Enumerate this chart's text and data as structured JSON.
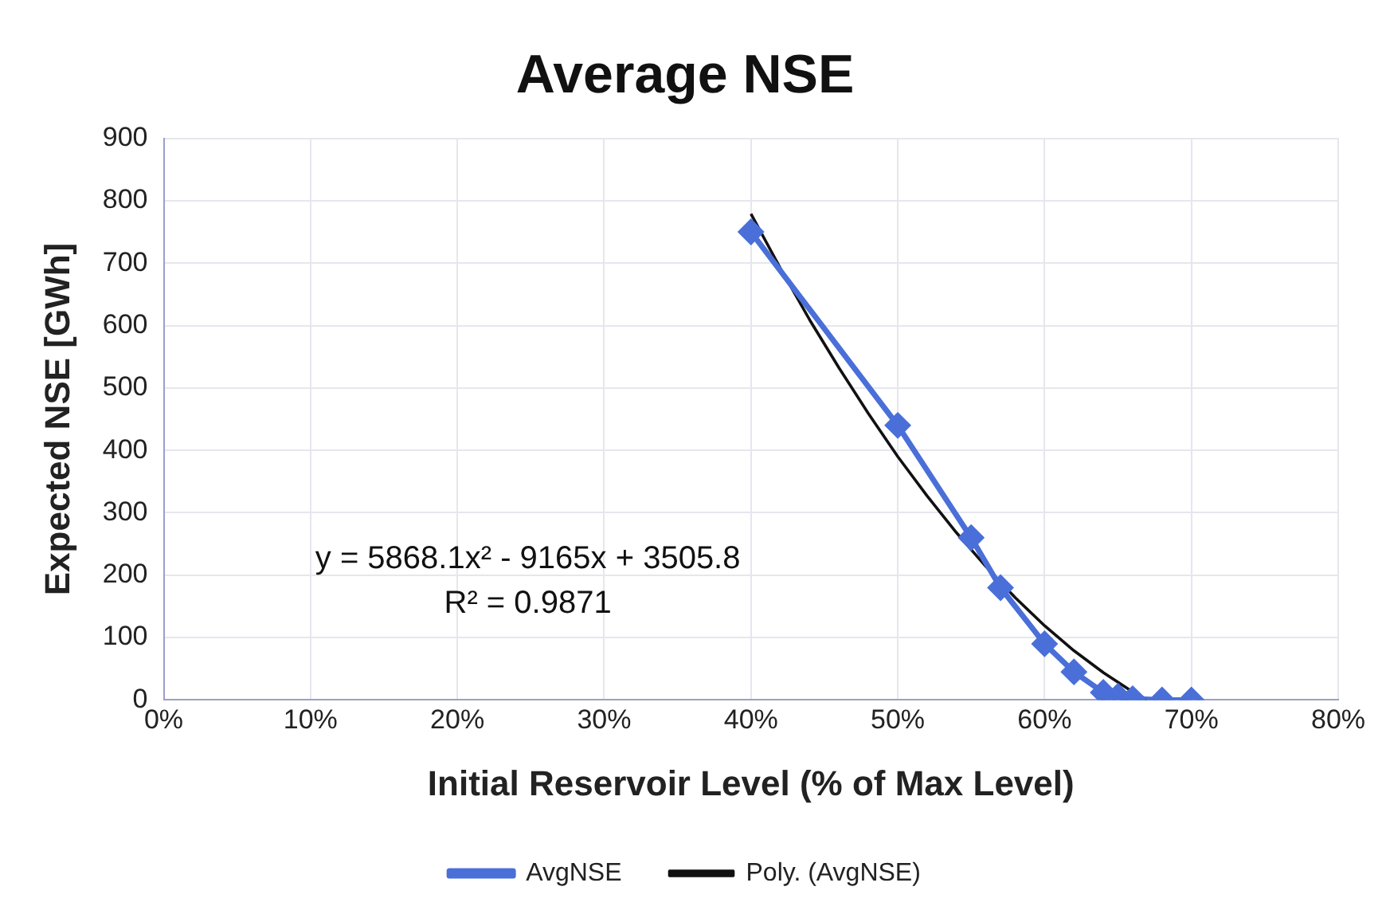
{
  "chart_data": {
    "type": "line",
    "title": "Average NSE",
    "xlabel": "Initial Reservoir Level (% of Max Level)",
    "ylabel": "Expected NSE [GWh]",
    "xlim": [
      0,
      0.8
    ],
    "xticks": [
      {
        "value": 0,
        "label": "0%"
      },
      {
        "value": 0.1,
        "label": "10%"
      },
      {
        "value": 0.2,
        "label": "20%"
      },
      {
        "value": 0.3,
        "label": "30%"
      },
      {
        "value": 0.4,
        "label": "40%"
      },
      {
        "value": 0.5,
        "label": "50%"
      },
      {
        "value": 0.6,
        "label": "60%"
      },
      {
        "value": 0.7,
        "label": "70%"
      },
      {
        "value": 0.8,
        "label": "80%"
      }
    ],
    "ylim": [
      0,
      900
    ],
    "yticks": [
      0,
      100,
      200,
      300,
      400,
      500,
      600,
      700,
      800,
      900
    ],
    "grid": true,
    "legend": "bottom",
    "marker": "diamond",
    "series": [
      {
        "name": "AvgNSE",
        "color": "#4a6fd8",
        "x": [
          0.4,
          0.5,
          0.55,
          0.57,
          0.6,
          0.62,
          0.64,
          0.65,
          0.66,
          0.68,
          0.7
        ],
        "values": [
          750,
          440,
          260,
          180,
          90,
          45,
          12,
          6,
          2,
          0,
          0
        ]
      },
      {
        "name": "Poly. (AvgNSE)",
        "type": "line",
        "marker": "none",
        "color": "#111111",
        "x": [
          0.4,
          0.42,
          0.44,
          0.46,
          0.48,
          0.5,
          0.52,
          0.54,
          0.56,
          0.58,
          0.6,
          0.62,
          0.64,
          0.66,
          0.67
        ],
        "values": [
          779,
          692,
          609,
          532,
          459,
          390,
          327,
          268,
          214,
          164,
          119,
          79,
          44,
          13,
          0
        ]
      }
    ],
    "annotations": [
      "y = 5868.1x² - 9165x + 3505.8",
      "R² = 0.9871"
    ]
  }
}
